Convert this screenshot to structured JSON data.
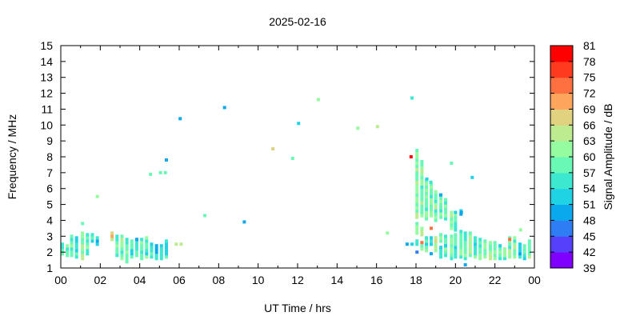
{
  "chart_data": {
    "type": "scatter",
    "title": "2025-02-16",
    "xlabel": "UT Time / hrs",
    "ylabel": "Frequency / MHz",
    "xlim": [
      0,
      24
    ],
    "ylim": [
      1,
      15
    ],
    "x_tick_labels": [
      "00",
      "02",
      "04",
      "06",
      "08",
      "10",
      "12",
      "14",
      "16",
      "18",
      "20",
      "22",
      "00"
    ],
    "y_tick_labels": [
      "1",
      "2",
      "3",
      "4",
      "5",
      "6",
      "7",
      "8",
      "9",
      "10",
      "11",
      "12",
      "13",
      "14",
      "15"
    ],
    "grid": false,
    "colorbar": {
      "label": "Signal Amplitude / dB",
      "range": [
        39,
        81
      ],
      "tick_labels": [
        "39",
        "42",
        "45",
        "48",
        "51",
        "54",
        "57",
        "60",
        "63",
        "66",
        "69",
        "72",
        "75",
        "78",
        "81"
      ],
      "colors": [
        "#8000ff",
        "#5540fb",
        "#2f7df5",
        "#0aa8ec",
        "#1fd2e4",
        "#3de8d0",
        "#6af8b6",
        "#95fca0",
        "#bdeb8f",
        "#e0d27e",
        "#fca55c",
        "#ff7040",
        "#ff3a1e",
        "#ff0000"
      ]
    },
    "series_format": "strips: [UT hour, freq low MHz, freq high MHz, amplitude dB]",
    "strips": [
      [
        0.08,
        1.9,
        2.5,
        58
      ],
      [
        0.33,
        1.8,
        2.5,
        57
      ],
      [
        0.55,
        1.8,
        3.1,
        58
      ],
      [
        0.8,
        1.7,
        3.0,
        56
      ],
      [
        1.1,
        1.6,
        3.2,
        60
      ],
      [
        1.35,
        1.9,
        3.1,
        57
      ],
      [
        1.6,
        2.7,
        3.1,
        55
      ],
      [
        1.85,
        2.5,
        3.0,
        52
      ],
      [
        2.6,
        2.8,
        3.2,
        66
      ],
      [
        2.85,
        1.8,
        3.1,
        58
      ],
      [
        3.1,
        1.6,
        3.0,
        60
      ],
      [
        3.35,
        1.4,
        2.9,
        57
      ],
      [
        3.6,
        1.7,
        2.7,
        55
      ],
      [
        3.85,
        1.8,
        2.8,
        54
      ],
      [
        4.1,
        1.6,
        2.9,
        58
      ],
      [
        4.35,
        1.7,
        2.9,
        57
      ],
      [
        4.6,
        1.7,
        2.5,
        54
      ],
      [
        4.85,
        1.6,
        2.5,
        52
      ],
      [
        5.1,
        1.6,
        2.4,
        53
      ],
      [
        5.35,
        1.7,
        2.8,
        55
      ],
      [
        18.05,
        4.2,
        8.5,
        62
      ],
      [
        18.05,
        3.2,
        3.8,
        60
      ],
      [
        18.05,
        2.5,
        2.8,
        52
      ],
      [
        18.3,
        4.3,
        7.8,
        60
      ],
      [
        18.3,
        3.1,
        3.5,
        62
      ],
      [
        18.3,
        2.2,
        2.4,
        58
      ],
      [
        18.53,
        4.1,
        6.6,
        57
      ],
      [
        18.53,
        2.5,
        3.0,
        55
      ],
      [
        18.53,
        2.1,
        2.3,
        60
      ],
      [
        18.77,
        4.3,
        6.3,
        58
      ],
      [
        18.77,
        2.5,
        3.0,
        55
      ],
      [
        19.0,
        4.0,
        5.8,
        60
      ],
      [
        19.0,
        2.1,
        3.0,
        63
      ],
      [
        19.26,
        4.2,
        5.6,
        58
      ],
      [
        19.26,
        2.7,
        3.1,
        60
      ],
      [
        19.26,
        1.7,
        2.3,
        55
      ],
      [
        19.5,
        4.1,
        5.4,
        59
      ],
      [
        19.5,
        2.6,
        3.0,
        60
      ],
      [
        19.5,
        1.8,
        2.4,
        57
      ],
      [
        19.8,
        3.5,
        4.6,
        61
      ],
      [
        19.8,
        1.6,
        3.1,
        58
      ],
      [
        20.0,
        3.4,
        4.5,
        57
      ],
      [
        20.0,
        1.7,
        3.1,
        56
      ],
      [
        20.28,
        4.4,
        4.6,
        52
      ],
      [
        20.28,
        1.7,
        3.4,
        58
      ],
      [
        20.5,
        1.6,
        3.3,
        57
      ],
      [
        20.75,
        1.8,
        3.2,
        60
      ],
      [
        21.0,
        1.7,
        3.0,
        57
      ],
      [
        21.25,
        1.6,
        2.9,
        58
      ],
      [
        21.5,
        1.7,
        2.8,
        60
      ],
      [
        21.77,
        1.6,
        2.7,
        62
      ],
      [
        22.0,
        1.6,
        2.6,
        61
      ],
      [
        22.26,
        1.6,
        2.5,
        56
      ],
      [
        22.5,
        1.6,
        2.3,
        58
      ],
      [
        22.75,
        1.7,
        3.0,
        60
      ],
      [
        23.0,
        1.7,
        3.0,
        59
      ],
      [
        23.27,
        1.7,
        2.5,
        54
      ],
      [
        23.5,
        1.6,
        2.5,
        57
      ],
      [
        23.75,
        1.7,
        2.8,
        60
      ]
    ],
    "points_format": "[UT hour, freq MHz, amplitude dB]",
    "points": [
      [
        1.1,
        3.8,
        57
      ],
      [
        1.85,
        5.5,
        60
      ],
      [
        5.85,
        2.5,
        64
      ],
      [
        6.1,
        2.5,
        63
      ],
      [
        4.55,
        6.9,
        57
      ],
      [
        5.05,
        7.0,
        58
      ],
      [
        5.3,
        7.0,
        59
      ],
      [
        5.35,
        7.8,
        49
      ],
      [
        6.05,
        10.4,
        49
      ],
      [
        7.3,
        4.3,
        58
      ],
      [
        8.3,
        11.1,
        48
      ],
      [
        9.3,
        3.9,
        50
      ],
      [
        10.75,
        8.5,
        67
      ],
      [
        11.75,
        7.9,
        58
      ],
      [
        12.05,
        10.1,
        52
      ],
      [
        13.05,
        11.6,
        62
      ],
      [
        15.05,
        9.8,
        62
      ],
      [
        16.05,
        9.9,
        64
      ],
      [
        16.55,
        3.2,
        60
      ],
      [
        17.8,
        11.7,
        55
      ],
      [
        17.55,
        2.5,
        50
      ],
      [
        17.8,
        2.5,
        52
      ],
      [
        17.75,
        8.0,
        80
      ],
      [
        18.05,
        2.0,
        47
      ],
      [
        18.3,
        2.6,
        74
      ],
      [
        18.77,
        3.5,
        73
      ],
      [
        18.77,
        1.9,
        48
      ],
      [
        18.55,
        6.6,
        52
      ],
      [
        18.75,
        6.4,
        56
      ],
      [
        19.25,
        5.6,
        49
      ],
      [
        19.8,
        7.6,
        58
      ],
      [
        20.0,
        4.5,
        52
      ],
      [
        20.3,
        4.5,
        50
      ],
      [
        20.5,
        1.2,
        48
      ],
      [
        20.85,
        6.7,
        52
      ],
      [
        23.3,
        3.4,
        60
      ],
      [
        22.75,
        2.8,
        72
      ]
    ]
  }
}
